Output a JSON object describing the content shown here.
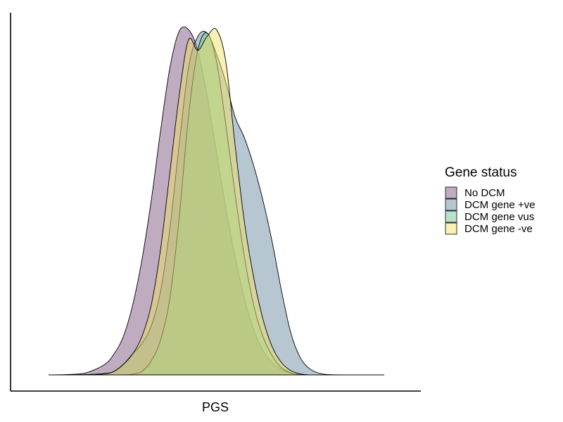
{
  "chart_data": {
    "type": "area",
    "title": "",
    "xlabel": "PGS",
    "ylabel": "",
    "xlim": [
      -4,
      4
    ],
    "ylim": [
      0,
      1
    ],
    "x_ticks_shown": false,
    "y_ticks_shown": false,
    "grid": false,
    "legend": {
      "title": "Gene status",
      "placement": "right"
    },
    "x": [
      -3.6,
      -3.2,
      -2.8,
      -2.4,
      -2.2,
      -2.0,
      -1.8,
      -1.6,
      -1.4,
      -1.2,
      -1.0,
      -0.8,
      -0.6,
      -0.4,
      -0.2,
      0.0,
      0.2,
      0.4,
      0.6,
      0.8,
      1.0,
      1.2,
      1.4,
      1.6,
      1.8,
      2.0,
      2.2,
      2.4,
      2.8,
      3.2,
      3.6
    ],
    "series": [
      {
        "name": "No DCM",
        "color": "#7f5a83",
        "values": [
          0,
          0.001,
          0.006,
          0.03,
          0.06,
          0.11,
          0.2,
          0.33,
          0.5,
          0.7,
          0.88,
          0.985,
          0.99,
          0.93,
          0.8,
          0.64,
          0.48,
          0.34,
          0.22,
          0.13,
          0.07,
          0.035,
          0.015,
          0.005,
          0.002,
          0,
          0,
          0,
          0,
          0,
          0
        ]
      },
      {
        "name": "DCM gene +ve",
        "color": "#6f8fa6",
        "values": [
          0,
          0,
          0.001,
          0.004,
          0.01,
          0.03,
          0.06,
          0.09,
          0.14,
          0.24,
          0.42,
          0.66,
          0.88,
          0.97,
          0.98,
          0.92,
          0.84,
          0.74,
          0.68,
          0.6,
          0.5,
          0.38,
          0.24,
          0.12,
          0.05,
          0.018,
          0.005,
          0.001,
          0,
          0,
          0
        ]
      },
      {
        "name": "DCM gene vus",
        "color": "#6fc894",
        "values": [
          0,
          0,
          0,
          0,
          0,
          0,
          0.002,
          0.01,
          0.04,
          0.1,
          0.22,
          0.45,
          0.74,
          0.93,
          0.98,
          0.9,
          0.72,
          0.52,
          0.34,
          0.2,
          0.11,
          0.055,
          0.02,
          0.006,
          0.001,
          0,
          0,
          0,
          0,
          0,
          0
        ]
      },
      {
        "name": "DCM gene -ve",
        "color": "#f2e26a",
        "values": [
          0,
          0,
          0,
          0.003,
          0.01,
          0.03,
          0.06,
          0.11,
          0.2,
          0.36,
          0.58,
          0.8,
          0.96,
          0.93,
          0.97,
          0.99,
          0.9,
          0.66,
          0.44,
          0.28,
          0.16,
          0.08,
          0.035,
          0.012,
          0.003,
          0,
          0,
          0,
          0,
          0,
          0
        ]
      }
    ]
  }
}
